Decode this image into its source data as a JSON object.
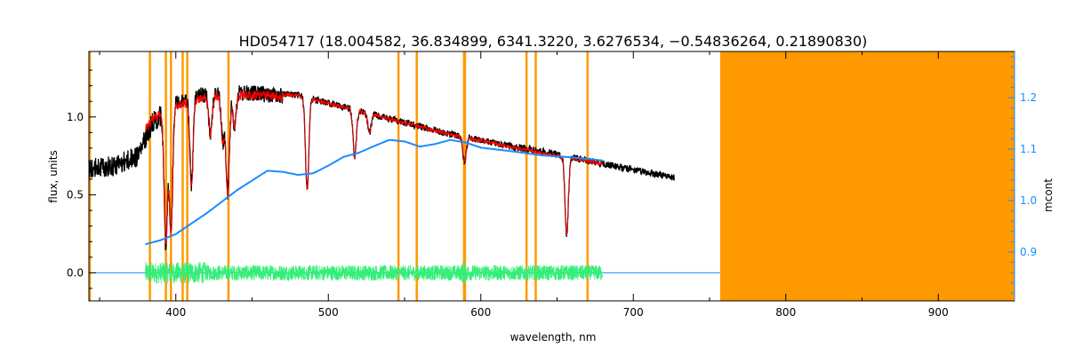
{
  "chart_data": {
    "type": "line",
    "title": "HD054717    (18.004582, 36.834899, 6341.3220, 3.6276534, −0.54836264, 0.21890830)",
    "xlabel": "wavelength, nm",
    "ylabel": "flux, units",
    "y2label": "mcont",
    "xlim": [
      343,
      950
    ],
    "ylim": [
      -0.18,
      1.42
    ],
    "y2lim": [
      0.805,
      1.29
    ],
    "x_ticks": [
      400,
      500,
      600,
      700,
      800,
      900
    ],
    "y_ticks": [
      0.0,
      0.5,
      1.0
    ],
    "y_tick_labels": [
      "0.0",
      "0.5",
      "1.0"
    ],
    "y2_ticks": [
      0.9,
      1.0,
      1.1,
      1.2
    ],
    "y2_tick_labels": [
      "0.9",
      "1.0",
      "1.1",
      "1.2"
    ],
    "colors": {
      "observed": "#000000",
      "model": "#ff0000",
      "continuum": "#1a8cff",
      "residual": "#33ee77",
      "mask": "#ff9900"
    },
    "masked_region": [
      757,
      950
    ],
    "mask_lines": [
      383,
      393.5,
      396.8,
      404.5,
      407.5,
      434.5,
      546,
      558,
      589,
      589.6,
      630,
      636,
      670
    ],
    "absorption_lines": [
      {
        "x": 393.4,
        "depth": 0.85
      },
      {
        "x": 396.8,
        "depth": 0.8
      },
      {
        "x": 410.2,
        "depth": 0.55
      },
      {
        "x": 422.7,
        "depth": 0.25
      },
      {
        "x": 430.8,
        "depth": 0.3
      },
      {
        "x": 434.0,
        "depth": 0.65
      },
      {
        "x": 438.4,
        "depth": 0.2
      },
      {
        "x": 486.1,
        "depth": 0.58
      },
      {
        "x": 517.3,
        "depth": 0.3
      },
      {
        "x": 527.0,
        "depth": 0.12
      },
      {
        "x": 589.3,
        "depth": 0.16
      },
      {
        "x": 656.3,
        "depth": 0.5
      }
    ],
    "series": [
      {
        "id": "observed",
        "x": [
          343,
          360,
          375,
          385,
          400,
          420,
          440,
          460,
          480,
          500,
          520,
          540,
          560,
          580,
          600,
          620,
          640,
          660,
          680,
          700,
          727
        ],
        "y": [
          0.7,
          0.72,
          0.78,
          1.0,
          1.12,
          1.17,
          1.18,
          1.17,
          1.15,
          1.1,
          1.05,
          1.0,
          0.95,
          0.9,
          0.86,
          0.82,
          0.79,
          0.75,
          0.71,
          0.67,
          0.62
        ]
      },
      {
        "id": "model",
        "x": [
          380,
          385,
          400,
          420,
          440,
          460,
          480,
          500,
          520,
          540,
          560,
          580,
          600,
          620,
          640,
          660,
          680
        ],
        "y": [
          0.95,
          1.02,
          1.1,
          1.16,
          1.17,
          1.17,
          1.15,
          1.1,
          1.05,
          1.0,
          0.95,
          0.9,
          0.86,
          0.82,
          0.78,
          0.75,
          0.71
        ]
      },
      {
        "id": "continuum",
        "x": [
          380,
          390,
          400,
          420,
          440,
          460,
          470,
          480,
          490,
          500,
          510,
          520,
          530,
          540,
          550,
          560,
          570,
          580,
          590,
          600,
          620,
          640,
          660,
          680
        ],
        "y2": [
          0.915,
          0.923,
          0.935,
          0.975,
          1.02,
          1.058,
          1.056,
          1.05,
          1.053,
          1.068,
          1.085,
          1.093,
          1.106,
          1.118,
          1.115,
          1.105,
          1.11,
          1.118,
          1.113,
          1.103,
          1.096,
          1.088,
          1.084,
          1.078
        ]
      },
      {
        "id": "residual",
        "x_range": [
          380,
          680
        ],
        "y_center": 0.0,
        "amplitude": 0.05
      },
      {
        "id": "zero-line",
        "x_range": [
          343,
          757
        ],
        "y": 0.0
      }
    ]
  }
}
